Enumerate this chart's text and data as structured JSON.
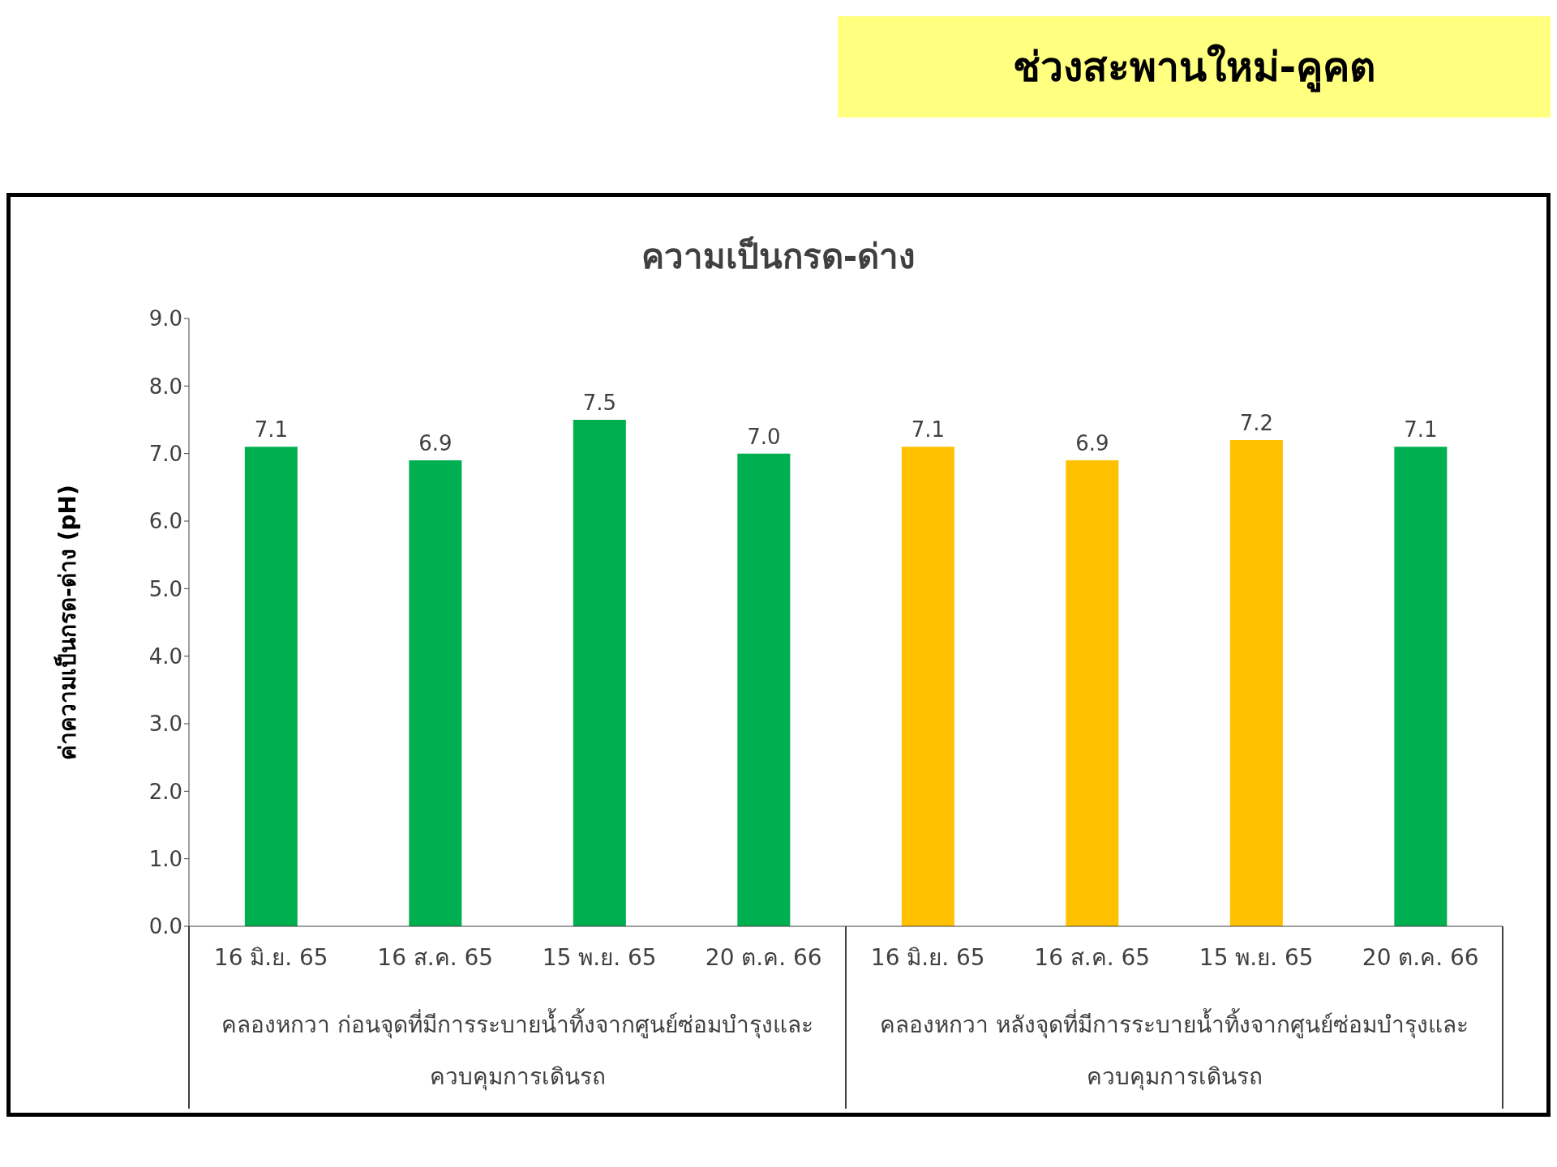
{
  "chart_data": {
    "type": "bar",
    "title": "ความเป็นกรด-ด่าง",
    "ylabel": "ค่าความเป็นกรด-ด่าง (pH)",
    "categories": [
      "16 มิ.ย. 65",
      "16 ส.ค. 65",
      "15 พ.ย. 65",
      "20 ต.ค. 66",
      "16 มิ.ย. 65",
      "16 ส.ค. 65",
      "15 พ.ย. 65",
      "20 ต.ค. 66"
    ],
    "values": [
      7.1,
      6.9,
      7.5,
      7.0,
      7.1,
      6.9,
      7.2,
      7.1
    ],
    "value_labels": [
      "7.1",
      "6.9",
      "7.5",
      "7.0",
      "7.1",
      "6.9",
      "7.2",
      "7.1"
    ],
    "colors": [
      "#00b050",
      "#00b050",
      "#00b050",
      "#00b050",
      "#ffc000",
      "#ffc000",
      "#ffc000",
      "#00b050"
    ],
    "ylim": [
      0,
      9
    ],
    "yticks": [
      {
        "value": 0,
        "label": "0.0"
      },
      {
        "value": 1,
        "label": "1.0"
      },
      {
        "value": 2,
        "label": "2.0"
      },
      {
        "value": 3,
        "label": "3.0"
      },
      {
        "value": 4,
        "label": "4.0"
      },
      {
        "value": 5,
        "label": "5.0"
      },
      {
        "value": 6,
        "label": "6.0"
      },
      {
        "value": 7,
        "label": "7.0"
      },
      {
        "value": 8,
        "label": "8.0"
      },
      {
        "value": 9,
        "label": "9.0"
      }
    ],
    "grid": false,
    "legend": false,
    "annotations": [
      "ช่วงสะพานใหม่-คูคต",
      "คลองหกวา ก่อนจุดที่มีการระบายน้ำทิ้งจากศูนย์ซ่อมบำรุงและควบคุมการเดินรถ",
      "คลองหกวา หลังจุดที่มีการระบายน้ำทิ้งจากศูนย์ซ่อมบำรุงและควบคุมการเดินรถ"
    ]
  }
}
